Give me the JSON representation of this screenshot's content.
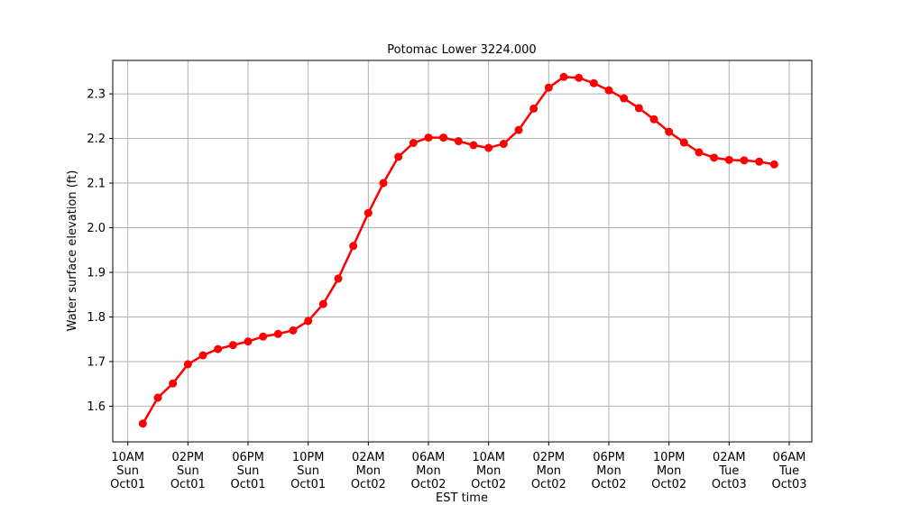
{
  "chart_data": {
    "type": "line",
    "title": "Potomac Lower 3224.000",
    "xlabel": "EST time",
    "ylabel": "Water surface elevation (ft)",
    "x_unit": "hours",
    "x_start": "2023-10-01 10:00",
    "x_end": "2023-10-03 06:00",
    "xlim": [
      -1.0,
      45.5
    ],
    "ylim": [
      1.52,
      2.375
    ],
    "grid": true,
    "x_ticks": [
      {
        "value": 0,
        "lines": [
          "10AM",
          "Sun",
          "Oct01"
        ]
      },
      {
        "value": 4,
        "lines": [
          "02PM",
          "Sun",
          "Oct01"
        ]
      },
      {
        "value": 8,
        "lines": [
          "06PM",
          "Sun",
          "Oct01"
        ]
      },
      {
        "value": 12,
        "lines": [
          "10PM",
          "Sun",
          "Oct01"
        ]
      },
      {
        "value": 16,
        "lines": [
          "02AM",
          "Mon",
          "Oct02"
        ]
      },
      {
        "value": 20,
        "lines": [
          "06AM",
          "Mon",
          "Oct02"
        ]
      },
      {
        "value": 24,
        "lines": [
          "10AM",
          "Mon",
          "Oct02"
        ]
      },
      {
        "value": 28,
        "lines": [
          "02PM",
          "Mon",
          "Oct02"
        ]
      },
      {
        "value": 32,
        "lines": [
          "06PM",
          "Mon",
          "Oct02"
        ]
      },
      {
        "value": 36,
        "lines": [
          "10PM",
          "Mon",
          "Oct02"
        ]
      },
      {
        "value": 40,
        "lines": [
          "02AM",
          "Tue",
          "Oct03"
        ]
      },
      {
        "value": 44,
        "lines": [
          "06AM",
          "Tue",
          "Oct03"
        ]
      }
    ],
    "y_ticks": [
      {
        "value": 1.6,
        "label": "1.6"
      },
      {
        "value": 1.7,
        "label": "1.7"
      },
      {
        "value": 1.8,
        "label": "1.8"
      },
      {
        "value": 1.9,
        "label": "1.9"
      },
      {
        "value": 2.0,
        "label": "2.0"
      },
      {
        "value": 2.1,
        "label": "2.1"
      },
      {
        "value": 2.2,
        "label": "2.2"
      },
      {
        "value": 2.3,
        "label": "2.3"
      }
    ],
    "series": [
      {
        "color": "#ff0000",
        "marker": "circle",
        "x": [
          1,
          2,
          3,
          4,
          5,
          6,
          7,
          8,
          9,
          10,
          11,
          12,
          13,
          14,
          15,
          16,
          17,
          18,
          19,
          20,
          21,
          22,
          23,
          24,
          25,
          26,
          27,
          28,
          29,
          30,
          31,
          32,
          33,
          34,
          35,
          36,
          37,
          38,
          39,
          40,
          41,
          42,
          43
        ],
        "values": [
          1.561,
          1.619,
          1.651,
          1.694,
          1.714,
          1.728,
          1.737,
          1.745,
          1.756,
          1.762,
          1.77,
          1.791,
          1.829,
          1.886,
          1.959,
          2.033,
          2.1,
          2.159,
          2.19,
          2.202,
          2.202,
          2.194,
          2.185,
          2.179,
          2.188,
          2.219,
          2.267,
          2.314,
          2.338,
          2.336,
          2.324,
          2.308,
          2.29,
          2.268,
          2.243,
          2.215,
          2.191,
          2.169,
          2.157,
          2.152,
          2.151,
          2.148,
          2.142
        ]
      }
    ]
  }
}
